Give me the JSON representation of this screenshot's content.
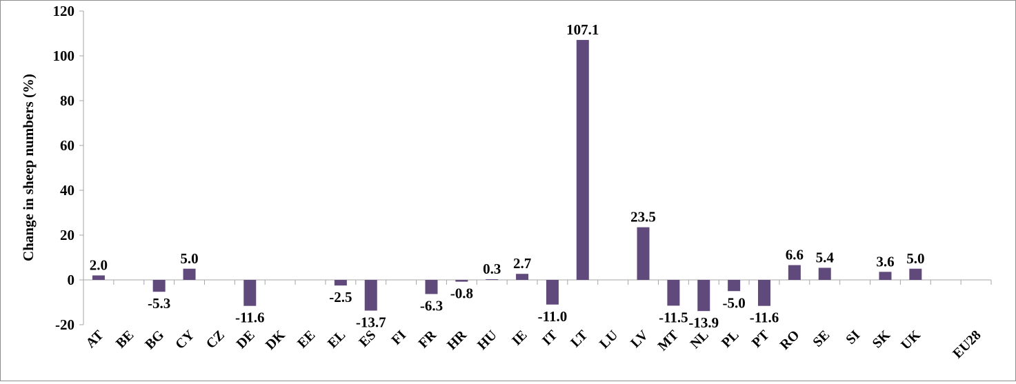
{
  "chart_data": {
    "type": "bar",
    "title": "",
    "xlabel": "",
    "ylabel": "Change in sheep numbers (%)",
    "ylim": [
      -20,
      120
    ],
    "yticks": [
      -20,
      0,
      20,
      40,
      60,
      80,
      100,
      120
    ],
    "grid": false,
    "legend": "none",
    "bar_color": "#604a7b",
    "categories": [
      "AT",
      "BE",
      "BG",
      "CY",
      "CZ",
      "DE",
      "DK",
      "EE",
      "EL",
      "ES",
      "FI",
      "FR",
      "HR",
      "HU",
      "IE",
      "IT",
      "LT",
      "LU",
      "LV",
      "MT",
      "NL",
      "PL",
      "PT",
      "RO",
      "SE",
      "SI",
      "SK",
      "UK",
      "",
      "EU28"
    ],
    "values": [
      2.0,
      null,
      -5.3,
      5.0,
      null,
      -11.6,
      null,
      null,
      -2.5,
      -13.7,
      null,
      -6.3,
      -0.8,
      0.3,
      2.7,
      -11.0,
      107.1,
      null,
      23.5,
      -11.5,
      -13.9,
      -5.0,
      -11.6,
      6.6,
      5.4,
      null,
      3.6,
      5.0,
      null,
      null
    ],
    "data_labels": [
      "2.0",
      "",
      "-5.3",
      "5.0",
      "",
      "-11.6",
      "",
      "",
      "-2.5",
      "-13.7",
      "",
      "-6.3",
      "-0.8",
      "0.3",
      "2.7",
      "-11.0",
      "107.1",
      "",
      "23.5",
      "-11.5",
      "-13.9",
      "-5.0",
      "-11.6",
      "6.6",
      "5.4",
      "",
      "3.6",
      "5.0",
      "",
      ""
    ]
  }
}
